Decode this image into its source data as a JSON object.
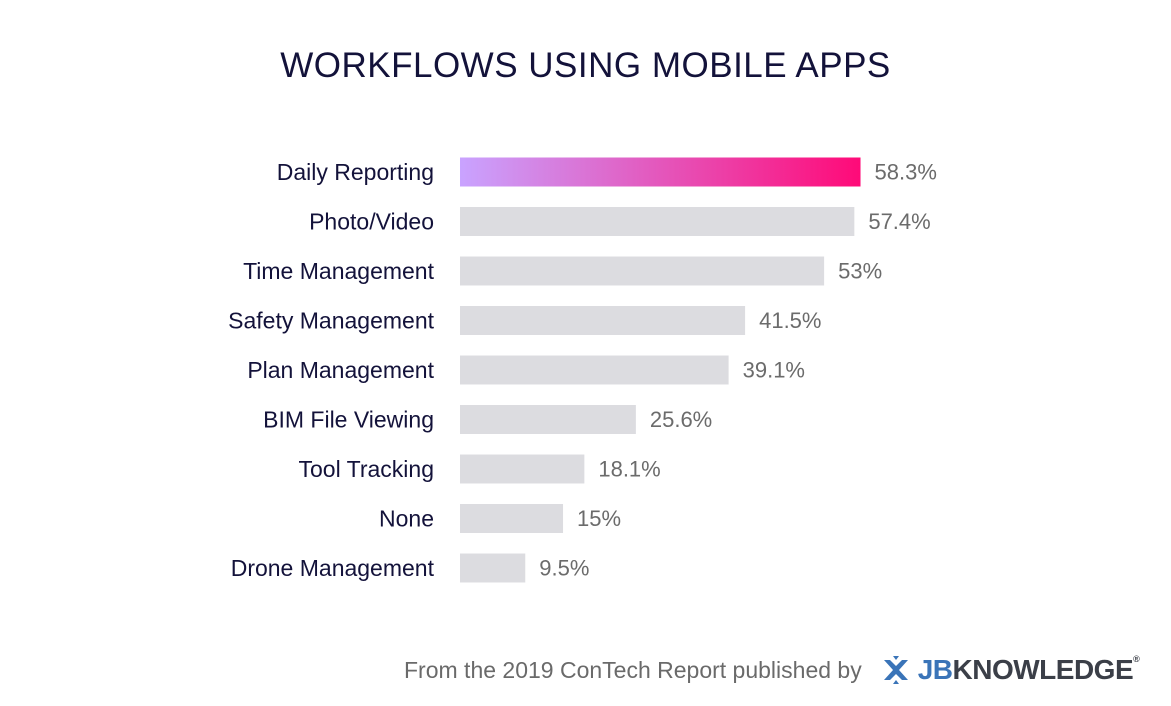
{
  "title": "WORKFLOWS USING MOBILE APPS",
  "chart_data": {
    "type": "bar",
    "orientation": "horizontal",
    "title": "WORKFLOWS USING MOBILE APPS",
    "categories": [
      "Daily Reporting",
      "Photo/Video",
      "Time Management",
      "Safety Management",
      "Plan Management",
      "BIM File Viewing",
      "Tool Tracking",
      "None",
      "Drone Management"
    ],
    "values": [
      58.3,
      57.4,
      53,
      41.5,
      39.1,
      25.6,
      18.1,
      15,
      9.5
    ],
    "value_labels": [
      "58.3%",
      "57.4%",
      "53%",
      "41.5%",
      "39.1%",
      "25.6%",
      "18.1%",
      "15%",
      "9.5%"
    ],
    "highlight_index": 0,
    "xlabel": "",
    "ylabel": "",
    "grid": false,
    "legend": "none",
    "colors": {
      "highlight_start": "#c9a3ff",
      "highlight_end": "#ff0a78",
      "bar": "#dcdce0",
      "category_text": "#13123a",
      "value_text": "#6b6b6b"
    }
  },
  "footer": {
    "text": "From the 2019 ConTech Report published by",
    "logo_icon": "jbknowledge-logo-icon",
    "logo_jb": "JB",
    "logo_rest": "KNOWLEDGE",
    "logo_reg": "®"
  }
}
